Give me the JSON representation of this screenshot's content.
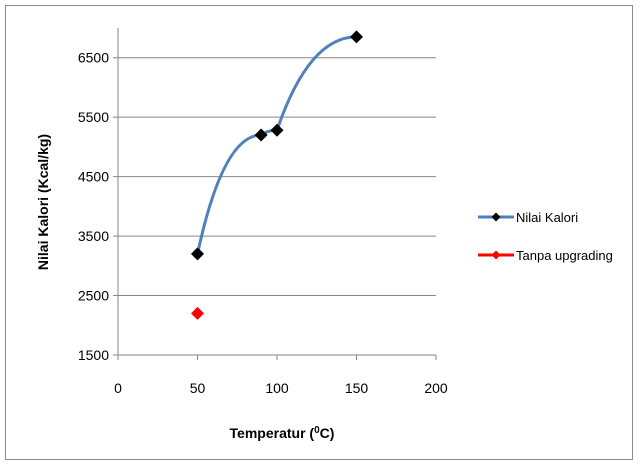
{
  "chart_data": {
    "type": "scatter",
    "xlabel_main": "Temperatur (",
    "xlabel_sup": "0",
    "xlabel_end": "C)",
    "ylabel": "Nilai Kalori (Kcal/kg)",
    "xlim": [
      0,
      200
    ],
    "ylim": [
      1500,
      7000
    ],
    "xticks": [
      0,
      50,
      100,
      150,
      200
    ],
    "yticks": [
      1500,
      2500,
      3500,
      4500,
      5500,
      6500
    ],
    "grid": "horizontal",
    "legend_position": "right",
    "series": [
      {
        "name": "Nilai Kalori",
        "line_color": "#4f81bd",
        "marker": "diamond",
        "marker_color": "#000000",
        "connected": true,
        "x": [
          50,
          90,
          100,
          150
        ],
        "y": [
          3200,
          5200,
          5280,
          6850
        ]
      },
      {
        "name": "Tanpa upgrading",
        "line_color": "#ff0000",
        "marker": "diamond",
        "marker_color": "#ff0000",
        "connected": false,
        "x": [
          50
        ],
        "y": [
          2200
        ]
      }
    ]
  }
}
